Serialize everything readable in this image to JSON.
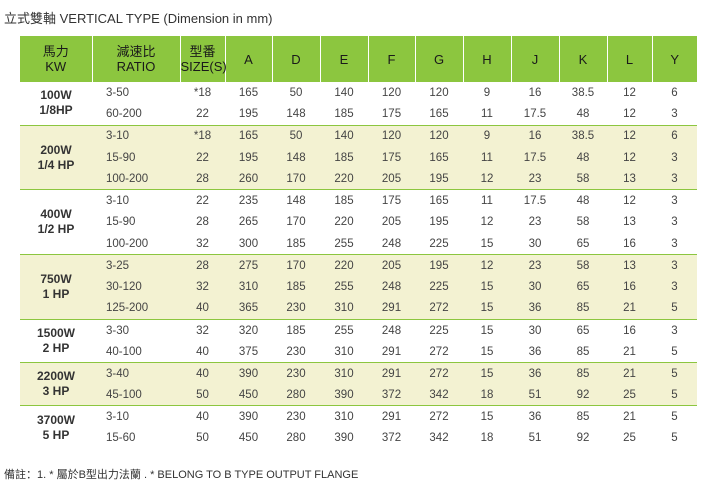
{
  "title": "立式雙軸 VERTICAL TYPE (Dimension in mm)",
  "headers": {
    "motor_line1": "馬力",
    "motor_line2": "KW",
    "ratio_line1": "減速比",
    "ratio_line2": "RATIO",
    "size_line1": "型番",
    "size_line2": "SIZE(S)",
    "cols": [
      "A",
      "D",
      "E",
      "F",
      "G",
      "H",
      "J",
      "K",
      "L",
      "Y"
    ]
  },
  "groups": [
    {
      "motor_line1": "100W",
      "motor_line2": "1/8HP",
      "rows": [
        {
          "ratio": "3-50",
          "size": "*18",
          "values": [
            "165",
            "50",
            "140",
            "120",
            "120",
            "9",
            "16",
            "38.5",
            "12",
            "6"
          ]
        },
        {
          "ratio": "60-200",
          "size": "22",
          "values": [
            "195",
            "148",
            "185",
            "175",
            "165",
            "11",
            "17.5",
            "48",
            "12",
            "3"
          ]
        }
      ]
    },
    {
      "motor_line1": "200W",
      "motor_line2": "1/4 HP",
      "rows": [
        {
          "ratio": "3-10",
          "size": "*18",
          "values": [
            "165",
            "50",
            "140",
            "120",
            "120",
            "9",
            "16",
            "38.5",
            "12",
            "6"
          ]
        },
        {
          "ratio": "15-90",
          "size": "22",
          "values": [
            "195",
            "148",
            "185",
            "175",
            "165",
            "11",
            "17.5",
            "48",
            "12",
            "3"
          ]
        },
        {
          "ratio": "100-200",
          "size": "28",
          "values": [
            "260",
            "170",
            "220",
            "205",
            "195",
            "12",
            "23",
            "58",
            "13",
            "3"
          ]
        }
      ]
    },
    {
      "motor_line1": "400W",
      "motor_line2": "1/2 HP",
      "rows": [
        {
          "ratio": "3-10",
          "size": "22",
          "values": [
            "235",
            "148",
            "185",
            "175",
            "165",
            "11",
            "17.5",
            "48",
            "12",
            "3"
          ]
        },
        {
          "ratio": "15-90",
          "size": "28",
          "values": [
            "265",
            "170",
            "220",
            "205",
            "195",
            "12",
            "23",
            "58",
            "13",
            "3"
          ]
        },
        {
          "ratio": "100-200",
          "size": "32",
          "values": [
            "300",
            "185",
            "255",
            "248",
            "225",
            "15",
            "30",
            "65",
            "16",
            "3"
          ]
        }
      ]
    },
    {
      "motor_line1": "750W",
      "motor_line2": "1 HP",
      "rows": [
        {
          "ratio": "3-25",
          "size": "28",
          "values": [
            "275",
            "170",
            "220",
            "205",
            "195",
            "12",
            "23",
            "58",
            "13",
            "3"
          ]
        },
        {
          "ratio": "30-120",
          "size": "32",
          "values": [
            "310",
            "185",
            "255",
            "248",
            "225",
            "15",
            "30",
            "65",
            "16",
            "3"
          ]
        },
        {
          "ratio": "125-200",
          "size": "40",
          "values": [
            "365",
            "230",
            "310",
            "291",
            "272",
            "15",
            "36",
            "85",
            "21",
            "5"
          ]
        }
      ]
    },
    {
      "motor_line1": "1500W",
      "motor_line2": "2 HP",
      "rows": [
        {
          "ratio": "3-30",
          "size": "32",
          "values": [
            "320",
            "185",
            "255",
            "248",
            "225",
            "15",
            "30",
            "65",
            "16",
            "3"
          ]
        },
        {
          "ratio": "40-100",
          "size": "40",
          "values": [
            "375",
            "230",
            "310",
            "291",
            "272",
            "15",
            "36",
            "85",
            "21",
            "5"
          ]
        }
      ]
    },
    {
      "motor_line1": "2200W",
      "motor_line2": "3 HP",
      "rows": [
        {
          "ratio": "3-40",
          "size": "40",
          "values": [
            "390",
            "230",
            "310",
            "291",
            "272",
            "15",
            "36",
            "85",
            "21",
            "5"
          ]
        },
        {
          "ratio": "45-100",
          "size": "50",
          "values": [
            "450",
            "280",
            "390",
            "372",
            "342",
            "18",
            "51",
            "92",
            "25",
            "5"
          ]
        }
      ]
    },
    {
      "motor_line1": "3700W",
      "motor_line2": "5 HP",
      "rows": [
        {
          "ratio": "3-10",
          "size": "40",
          "values": [
            "390",
            "230",
            "310",
            "291",
            "272",
            "15",
            "36",
            "85",
            "21",
            "5"
          ]
        },
        {
          "ratio": "15-60",
          "size": "50",
          "values": [
            "450",
            "280",
            "390",
            "372",
            "342",
            "18",
            "51",
            "92",
            "25",
            "5"
          ]
        }
      ]
    }
  ],
  "highlighted_values": [
    "38.5",
    "260",
    "375"
  ],
  "colors": {
    "header_green": "#8cc63f",
    "row_shade": "#f3f2d2",
    "highlight_blue": "#29a8e0"
  },
  "footnote": "備註：1. * 屬於B型出力法蘭 . * BELONG TO  B  TYPE OUTPUT FLANGE"
}
